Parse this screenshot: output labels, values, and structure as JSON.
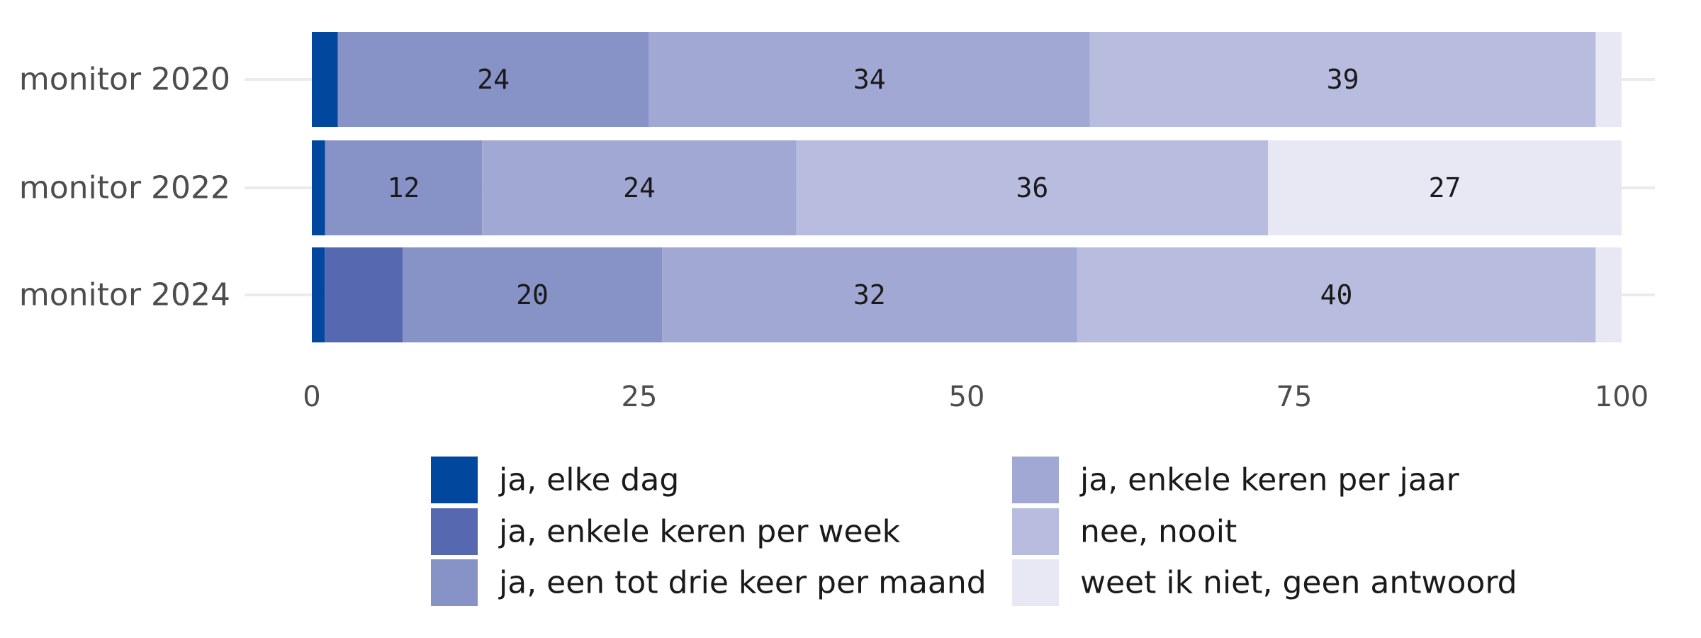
{
  "chart_data": {
    "type": "bar",
    "orientation": "horizontal",
    "stacked": true,
    "categories": [
      "monitor 2020",
      "monitor 2022",
      "monitor 2024"
    ],
    "series": [
      {
        "name": "ja, elke dag",
        "color": "#00479d",
        "values": [
          2,
          1,
          1
        ]
      },
      {
        "name": "ja, enkele keren per week",
        "color": "#5669b0",
        "values": [
          0,
          0,
          6
        ]
      },
      {
        "name": "ja, een tot drie keer per maand",
        "color": "#8792c6",
        "values": [
          24,
          12,
          20
        ]
      },
      {
        "name": "ja, enkele keren per jaar",
        "color": "#a2a8d4",
        "values": [
          34,
          24,
          32
        ]
      },
      {
        "name": "nee, nooit",
        "color": "#b8bcde",
        "values": [
          39,
          36,
          40
        ]
      },
      {
        "name": "weet ik niet, geen antwoord",
        "color": "#e8e8f4",
        "values": [
          2,
          27,
          2
        ]
      }
    ],
    "data_labels": [
      {
        "category": "monitor 2020",
        "series": "ja, een tot drie keer per maand",
        "text": "24"
      },
      {
        "category": "monitor 2020",
        "series": "ja, enkele keren per jaar",
        "text": "34"
      },
      {
        "category": "monitor 2020",
        "series": "nee, nooit",
        "text": "39"
      },
      {
        "category": "monitor 2022",
        "series": "ja, een tot drie keer per maand",
        "text": "12"
      },
      {
        "category": "monitor 2022",
        "series": "ja, enkele keren per jaar",
        "text": "24"
      },
      {
        "category": "monitor 2022",
        "series": "nee, nooit",
        "text": "36"
      },
      {
        "category": "monitor 2022",
        "series": "weet ik niet, geen antwoord",
        "text": "27"
      },
      {
        "category": "monitor 2024",
        "series": "ja, een tot drie keer per maand",
        "text": "20"
      },
      {
        "category": "monitor 2024",
        "series": "ja, enkele keren per jaar",
        "text": "32"
      },
      {
        "category": "monitor 2024",
        "series": "nee, nooit",
        "text": "40"
      }
    ],
    "xlim": [
      0,
      100
    ],
    "xticks": [
      "0",
      "25",
      "50",
      "75",
      "100"
    ],
    "title": "",
    "xlabel": "",
    "ylabel": "",
    "grid": true,
    "legend_position": "bottom"
  }
}
